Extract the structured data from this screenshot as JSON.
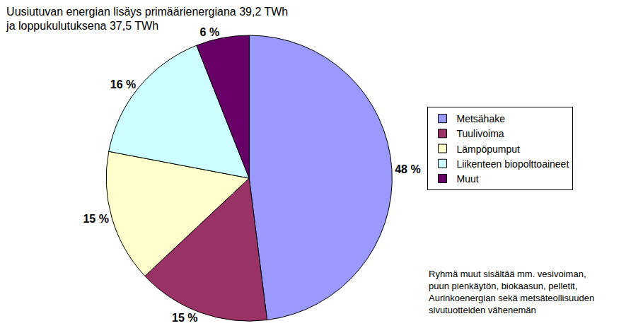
{
  "chart_data": {
    "type": "pie",
    "title": [
      "Uusiutuvan energian lisäys primäärienergiana 39,2 TWh",
      "ja loppukulutuksena 37,5 TWh"
    ],
    "categories": [
      "Metsähake",
      "Tuulivoima",
      "Lämpöpumput",
      "Liikenteen biopolttoaineet",
      "Muut"
    ],
    "values": [
      48,
      15,
      15,
      16,
      6
    ],
    "value_labels": [
      "48 %",
      "15 %",
      "15 %",
      "16 %",
      "6 %"
    ],
    "colors": [
      "#9999ff",
      "#993366",
      "#ffffcc",
      "#ccffff",
      "#660066"
    ],
    "data_labels": true,
    "legend": "right",
    "annotations": [
      {
        "lines": [
          "Ryhmä muut sisältää mm. vesivoiman,",
          "puun pienkäytön, biokaasun, pelletit,",
          "Aurinkoenergian sekä metsäteollisuuden",
          "sivutuotteiden vähenemän"
        ]
      }
    ]
  }
}
